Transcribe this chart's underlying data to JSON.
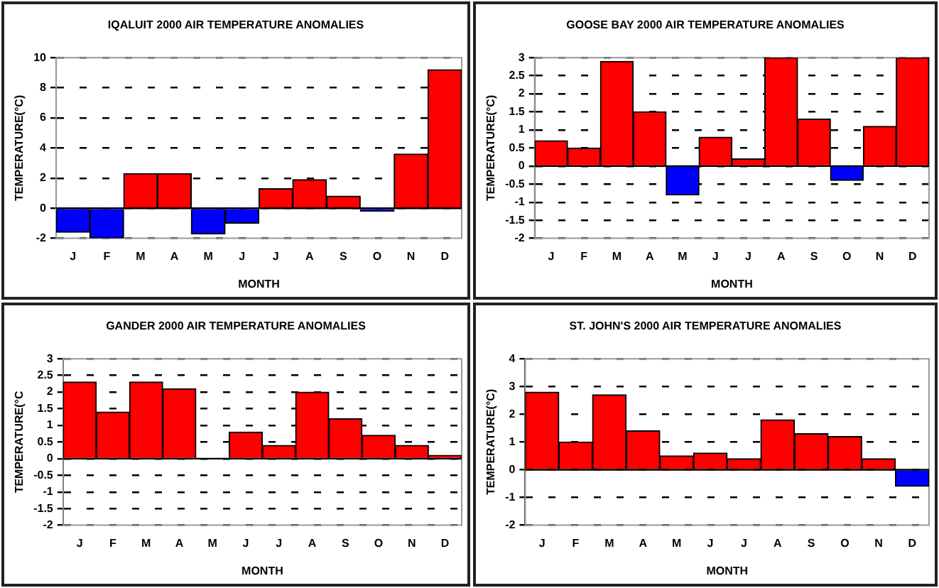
{
  "chart_data": [
    {
      "type": "bar",
      "title": "IQALUIT 2000 AIR TEMPERATURE ANOMALIES",
      "xlabel": "MONTH",
      "ylabel": "TEMPERATURE(°C)",
      "categories": [
        "J",
        "F",
        "M",
        "A",
        "M",
        "J",
        "J",
        "A",
        "S",
        "O",
        "N",
        "D"
      ],
      "series": [
        {
          "values": [
            -1.6,
            -2,
            2.3,
            2.3,
            -1.7,
            -1,
            1.3,
            1.9,
            0.8,
            -0.2,
            3.6,
            9.2
          ],
          "colors": [
            "#0000ff",
            "#0000ff",
            "#ff0000",
            "#ff0000",
            "#0000ff",
            "#0000ff",
            "#ff0000",
            "#ff0000",
            "#ff0000",
            "#0000ff",
            "#ff0000",
            "#ff0000"
          ]
        }
      ],
      "ylim": [
        -2,
        10
      ],
      "yticks": [
        -2,
        0,
        2,
        4,
        6,
        8,
        10
      ],
      "grid": "y",
      "legend": false
    },
    {
      "type": "bar",
      "title": "GOOSE BAY 2000 AIR TEMPERATURE ANOMALIES",
      "xlabel": "MONTH",
      "ylabel": "TEMPERATURE(°C)",
      "categories": [
        "J",
        "F",
        "M",
        "A",
        "M",
        "J",
        "J",
        "A",
        "S",
        "O",
        "N",
        "D"
      ],
      "series": [
        {
          "values": [
            0.7,
            0.5,
            2.9,
            1.5,
            -0.8,
            0.8,
            0.2,
            3,
            1.3,
            -0.4,
            1.1,
            3
          ],
          "colors": [
            "#ff0000",
            "#ff0000",
            "#ff0000",
            "#ff0000",
            "#0000ff",
            "#ff0000",
            "#ff0000",
            "#ff0000",
            "#ff0000",
            "#0000ff",
            "#ff0000",
            "#ff0000"
          ]
        }
      ],
      "ylim": [
        -2,
        3
      ],
      "yticks": [
        -2,
        -1.5,
        -1,
        -0.5,
        0,
        0.5,
        1,
        1.5,
        2,
        2.5,
        3
      ],
      "grid": "y",
      "legend": false
    },
    {
      "type": "bar",
      "title": "GANDER 2000 AIR TEMPERATURE ANOMALIES",
      "xlabel": "MONTH",
      "ylabel": "TEMPERATURE(°C",
      "categories": [
        "J",
        "F",
        "M",
        "A",
        "M",
        "J",
        "J",
        "A",
        "S",
        "O",
        "N",
        "D"
      ],
      "series": [
        {
          "values": [
            2.3,
            1.4,
            2.3,
            2.1,
            null,
            0.8,
            0.4,
            2,
            1.2,
            0.7,
            0.4,
            0.1
          ],
          "colors": [
            "#ff0000",
            "#ff0000",
            "#ff0000",
            "#ff0000",
            "#ff0000",
            "#ff0000",
            "#ff0000",
            "#ff0000",
            "#ff0000",
            "#ff0000",
            "#ff0000",
            "#ff0000"
          ]
        }
      ],
      "ylim": [
        -2,
        3
      ],
      "yticks": [
        -2,
        -1.5,
        -1,
        -0.5,
        0,
        0.5,
        1,
        1.5,
        2,
        2.5,
        3
      ],
      "grid": "y",
      "legend": false
    },
    {
      "type": "bar",
      "title": "ST. JOHN'S 2000 AIR TEMPERATURE ANOMALIES",
      "xlabel": "MONTH",
      "ylabel": "TEMPERATURE(°C)",
      "categories": [
        "J",
        "F",
        "M",
        "A",
        "M",
        "J",
        "J",
        "A",
        "S",
        "O",
        "N",
        "D"
      ],
      "series": [
        {
          "values": [
            2.8,
            1,
            2.7,
            1.4,
            0.5,
            0.6,
            0.4,
            1.8,
            1.3,
            1.2,
            0.4,
            -0.6
          ],
          "colors": [
            "#ff0000",
            "#ff0000",
            "#ff0000",
            "#ff0000",
            "#ff0000",
            "#ff0000",
            "#ff0000",
            "#ff0000",
            "#ff0000",
            "#ff0000",
            "#ff0000",
            "#0000ff"
          ]
        }
      ],
      "ylim": [
        -2,
        4
      ],
      "yticks": [
        -2,
        -1,
        0,
        1,
        2,
        3,
        4
      ],
      "grid": "y",
      "legend": false
    }
  ]
}
